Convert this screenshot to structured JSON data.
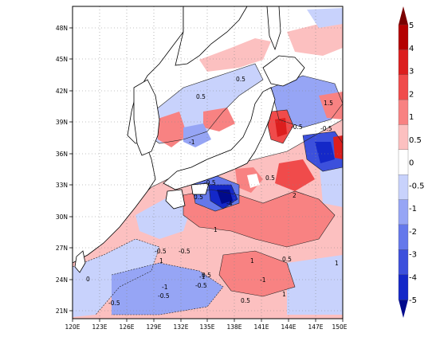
{
  "map": {
    "lat_labels": [
      "48N",
      "45N",
      "42N",
      "39N",
      "36N",
      "33N",
      "30N",
      "27N",
      "24N",
      "21N"
    ],
    "lon_labels": [
      "120E",
      "123E",
      "126E",
      "129E",
      "132E",
      "135E",
      "138E",
      "141E",
      "144E",
      "147E",
      "150E"
    ],
    "contour_labels": [
      "0.5",
      "1.5",
      "0.5",
      "-0.5",
      "-1",
      "-0.5",
      "-0.5",
      "-4",
      "0.5",
      "2",
      "1",
      "-0.5",
      "0.5",
      "-0.5",
      "-1",
      "1",
      "-0.5",
      "-1",
      "-0.5",
      "0.5",
      "0.5",
      "1",
      "-1",
      "-0.5",
      "0.5",
      "1",
      "0",
      "1"
    ]
  },
  "colorbar": {
    "labels": [
      "5",
      "4",
      "3",
      "2",
      "1",
      "0.5",
      "0",
      "-0.5",
      "-1",
      "-2",
      "-3",
      "-4",
      "-5"
    ],
    "colors": [
      "#7a0000",
      "#b40000",
      "#dc1e1e",
      "#f04b4b",
      "#f88282",
      "#fcc0c0",
      "#ffffff",
      "#c8d2fc",
      "#96a5f5",
      "#6478eb",
      "#3c50dc",
      "#1428c8",
      "#000a8c"
    ]
  }
}
